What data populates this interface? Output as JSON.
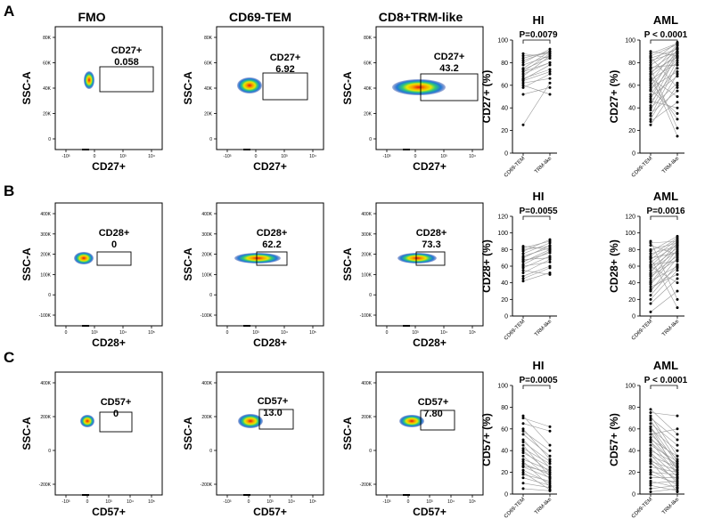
{
  "col_titles": [
    "FMO",
    "CD69-TEM",
    "CD8+TRM-like",
    "HI",
    "AML"
  ],
  "rows": [
    {
      "letter": "A",
      "marker": "CD27+",
      "xlabel": "CD27+",
      "ylabel": "SSC-A",
      "x_ticks": [
        "-10³",
        "0",
        "10³",
        "10⁴"
      ],
      "y_ticks": [
        "80K",
        "60K",
        "40K",
        "20K",
        "0"
      ],
      "gate_values": [
        "0.058",
        "6.92",
        "43.2"
      ],
      "ylab_pct": "CD27+ (%)"
    },
    {
      "letter": "B",
      "marker": "CD28+",
      "xlabel": "CD28+",
      "ylabel": "SSC-A",
      "x_ticks": [
        "0",
        "10³",
        "10⁴",
        "10⁵"
      ],
      "y_ticks": [
        "400K",
        "300K",
        "200K",
        "100K",
        "0",
        "-100K"
      ],
      "gate_values": [
        "0",
        "62.2",
        "73.3"
      ],
      "ylab_pct": "CD28+ (%)"
    },
    {
      "letter": "C",
      "marker": "CD57+",
      "xlabel": "CD57+",
      "ylabel": "SSC-A",
      "x_ticks": [
        "-10³",
        "0",
        "10³",
        "10⁴",
        "10⁵"
      ],
      "y_ticks": [
        "400K",
        "200K",
        "0",
        "-200K"
      ],
      "gate_values": [
        "0",
        "13.0",
        "7.80"
      ],
      "ylab_pct": "CD57+ (%)"
    }
  ],
  "chart_data": [
    {
      "type": "scatter",
      "panel": "A-HI",
      "title": "HI",
      "ylabel": "CD27+ (%)",
      "categories": [
        "CD69-TEM",
        "TRM-like"
      ],
      "ylim": [
        0,
        100
      ],
      "y_ticks": [
        "0",
        "20",
        "40",
        "60",
        "80",
        "100"
      ],
      "pvalue": "P=0.0079",
      "pairs": [
        [
          25,
          62
        ],
        [
          52,
          58
        ],
        [
          58,
          70
        ],
        [
          60,
          52
        ],
        [
          62,
          66
        ],
        [
          65,
          78
        ],
        [
          66,
          74
        ],
        [
          68,
          86
        ],
        [
          70,
          80
        ],
        [
          72,
          88
        ],
        [
          74,
          84
        ],
        [
          75,
          90
        ],
        [
          78,
          86
        ],
        [
          80,
          92
        ],
        [
          82,
          90
        ],
        [
          84,
          90
        ],
        [
          86,
          88
        ],
        [
          72,
          80
        ],
        [
          88,
          84
        ],
        [
          64,
          72
        ]
      ]
    },
    {
      "type": "scatter",
      "panel": "A-AML",
      "title": "AML",
      "ylabel": "CD27+ (%)",
      "categories": [
        "CD69-TEM",
        "TRM-like"
      ],
      "ylim": [
        0,
        100
      ],
      "y_ticks": [
        "0",
        "20",
        "40",
        "60",
        "80",
        "100"
      ],
      "pvalue": "P < 0.0001",
      "pairs": [
        [
          25,
          60
        ],
        [
          28,
          45
        ],
        [
          30,
          70
        ],
        [
          33,
          78
        ],
        [
          35,
          55
        ],
        [
          38,
          82
        ],
        [
          40,
          62
        ],
        [
          42,
          88
        ],
        [
          45,
          75
        ],
        [
          48,
          90
        ],
        [
          50,
          68
        ],
        [
          52,
          84
        ],
        [
          55,
          92
        ],
        [
          58,
          72
        ],
        [
          60,
          86
        ],
        [
          62,
          95
        ],
        [
          65,
          80
        ],
        [
          68,
          88
        ],
        [
          70,
          96
        ],
        [
          72,
          85
        ],
        [
          74,
          90
        ],
        [
          76,
          78
        ],
        [
          78,
          93
        ],
        [
          80,
          98
        ],
        [
          82,
          89
        ],
        [
          84,
          92
        ],
        [
          86,
          96
        ],
        [
          88,
          97
        ],
        [
          90,
          86
        ],
        [
          75,
          22
        ],
        [
          70,
          15
        ],
        [
          66,
          50
        ],
        [
          56,
          35
        ],
        [
          46,
          40
        ],
        [
          85,
          58
        ],
        [
          64,
          30
        ]
      ]
    },
    {
      "type": "scatter",
      "panel": "B-HI",
      "title": "HI",
      "ylabel": "CD28+ (%)",
      "categories": [
        "CD69-TEM",
        "TRM-like"
      ],
      "ylim": [
        0,
        120
      ],
      "y_ticks": [
        "0",
        "20",
        "40",
        "60",
        "80",
        "100",
        "120"
      ],
      "pvalue": "P=0.0055",
      "pairs": [
        [
          42,
          52
        ],
        [
          48,
          60
        ],
        [
          52,
          68
        ],
        [
          55,
          50
        ],
        [
          58,
          72
        ],
        [
          60,
          65
        ],
        [
          62,
          78
        ],
        [
          65,
          80
        ],
        [
          68,
          70
        ],
        [
          70,
          85
        ],
        [
          72,
          82
        ],
        [
          75,
          88
        ],
        [
          78,
          92
        ],
        [
          80,
          84
        ],
        [
          82,
          90
        ],
        [
          45,
          58
        ],
        [
          66,
          76
        ],
        [
          84,
          80
        ]
      ]
    },
    {
      "type": "scatter",
      "panel": "B-AML",
      "title": "AML",
      "ylabel": "CD28+ (%)",
      "categories": [
        "CD69-TEM",
        "TRM-like"
      ],
      "ylim": [
        0,
        120
      ],
      "y_ticks": [
        "0",
        "20",
        "40",
        "60",
        "80",
        "100",
        "120"
      ],
      "pvalue": "P=0.0016",
      "pairs": [
        [
          5,
          30
        ],
        [
          15,
          45
        ],
        [
          20,
          55
        ],
        [
          25,
          62
        ],
        [
          30,
          70
        ],
        [
          35,
          50
        ],
        [
          38,
          75
        ],
        [
          40,
          80
        ],
        [
          42,
          60
        ],
        [
          45,
          85
        ],
        [
          48,
          68
        ],
        [
          50,
          72
        ],
        [
          52,
          88
        ],
        [
          55,
          78
        ],
        [
          58,
          82
        ],
        [
          60,
          90
        ],
        [
          62,
          66
        ],
        [
          65,
          86
        ],
        [
          68,
          92
        ],
        [
          70,
          76
        ],
        [
          72,
          94
        ],
        [
          75,
          84
        ],
        [
          78,
          96
        ],
        [
          80,
          88
        ],
        [
          85,
          74
        ],
        [
          88,
          90
        ],
        [
          90,
          20
        ],
        [
          70,
          10
        ],
        [
          60,
          40
        ],
        [
          32,
          58
        ]
      ]
    },
    {
      "type": "scatter",
      "panel": "C-HI",
      "title": "HI",
      "ylabel": "CD57+ (%)",
      "categories": [
        "CD69-TEM",
        "TRM-like"
      ],
      "ylim": [
        0,
        100
      ],
      "y_ticks": [
        "0",
        "20",
        "40",
        "60",
        "80",
        "100"
      ],
      "pvalue": "P=0.0005",
      "pairs": [
        [
          5,
          3
        ],
        [
          10,
          6
        ],
        [
          15,
          8
        ],
        [
          18,
          12
        ],
        [
          20,
          4
        ],
        [
          22,
          10
        ],
        [
          25,
          15
        ],
        [
          28,
          18
        ],
        [
          30,
          7
        ],
        [
          32,
          22
        ],
        [
          35,
          14
        ],
        [
          38,
          25
        ],
        [
          40,
          20
        ],
        [
          42,
          28
        ],
        [
          45,
          16
        ],
        [
          48,
          30
        ],
        [
          50,
          24
        ],
        [
          55,
          35
        ],
        [
          58,
          40
        ],
        [
          60,
          32
        ],
        [
          65,
          58
        ],
        [
          70,
          62
        ],
        [
          72,
          45
        ],
        [
          26,
          20
        ]
      ]
    },
    {
      "type": "scatter",
      "panel": "C-AML",
      "title": "AML",
      "ylabel": "CD57+ (%)",
      "categories": [
        "CD69-TEM",
        "TRM-like"
      ],
      "ylim": [
        0,
        100
      ],
      "y_ticks": [
        "0",
        "20",
        "40",
        "60",
        "80",
        "100"
      ],
      "pvalue": "P < 0.0001",
      "pairs": [
        [
          2,
          5
        ],
        [
          5,
          8
        ],
        [
          8,
          3
        ],
        [
          10,
          12
        ],
        [
          12,
          6
        ],
        [
          15,
          15
        ],
        [
          18,
          10
        ],
        [
          20,
          18
        ],
        [
          22,
          8
        ],
        [
          25,
          20
        ],
        [
          28,
          14
        ],
        [
          30,
          22
        ],
        [
          32,
          12
        ],
        [
          35,
          25
        ],
        [
          38,
          16
        ],
        [
          40,
          28
        ],
        [
          42,
          20
        ],
        [
          45,
          30
        ],
        [
          48,
          18
        ],
        [
          50,
          35
        ],
        [
          52,
          24
        ],
        [
          55,
          32
        ],
        [
          58,
          22
        ],
        [
          60,
          40
        ],
        [
          62,
          28
        ],
        [
          65,
          45
        ],
        [
          68,
          30
        ],
        [
          70,
          50
        ],
        [
          72,
          35
        ],
        [
          75,
          72
        ],
        [
          78,
          55
        ],
        [
          48,
          26
        ],
        [
          36,
          10
        ],
        [
          62,
          18
        ],
        [
          30,
          2
        ],
        [
          55,
          60
        ]
      ]
    }
  ]
}
